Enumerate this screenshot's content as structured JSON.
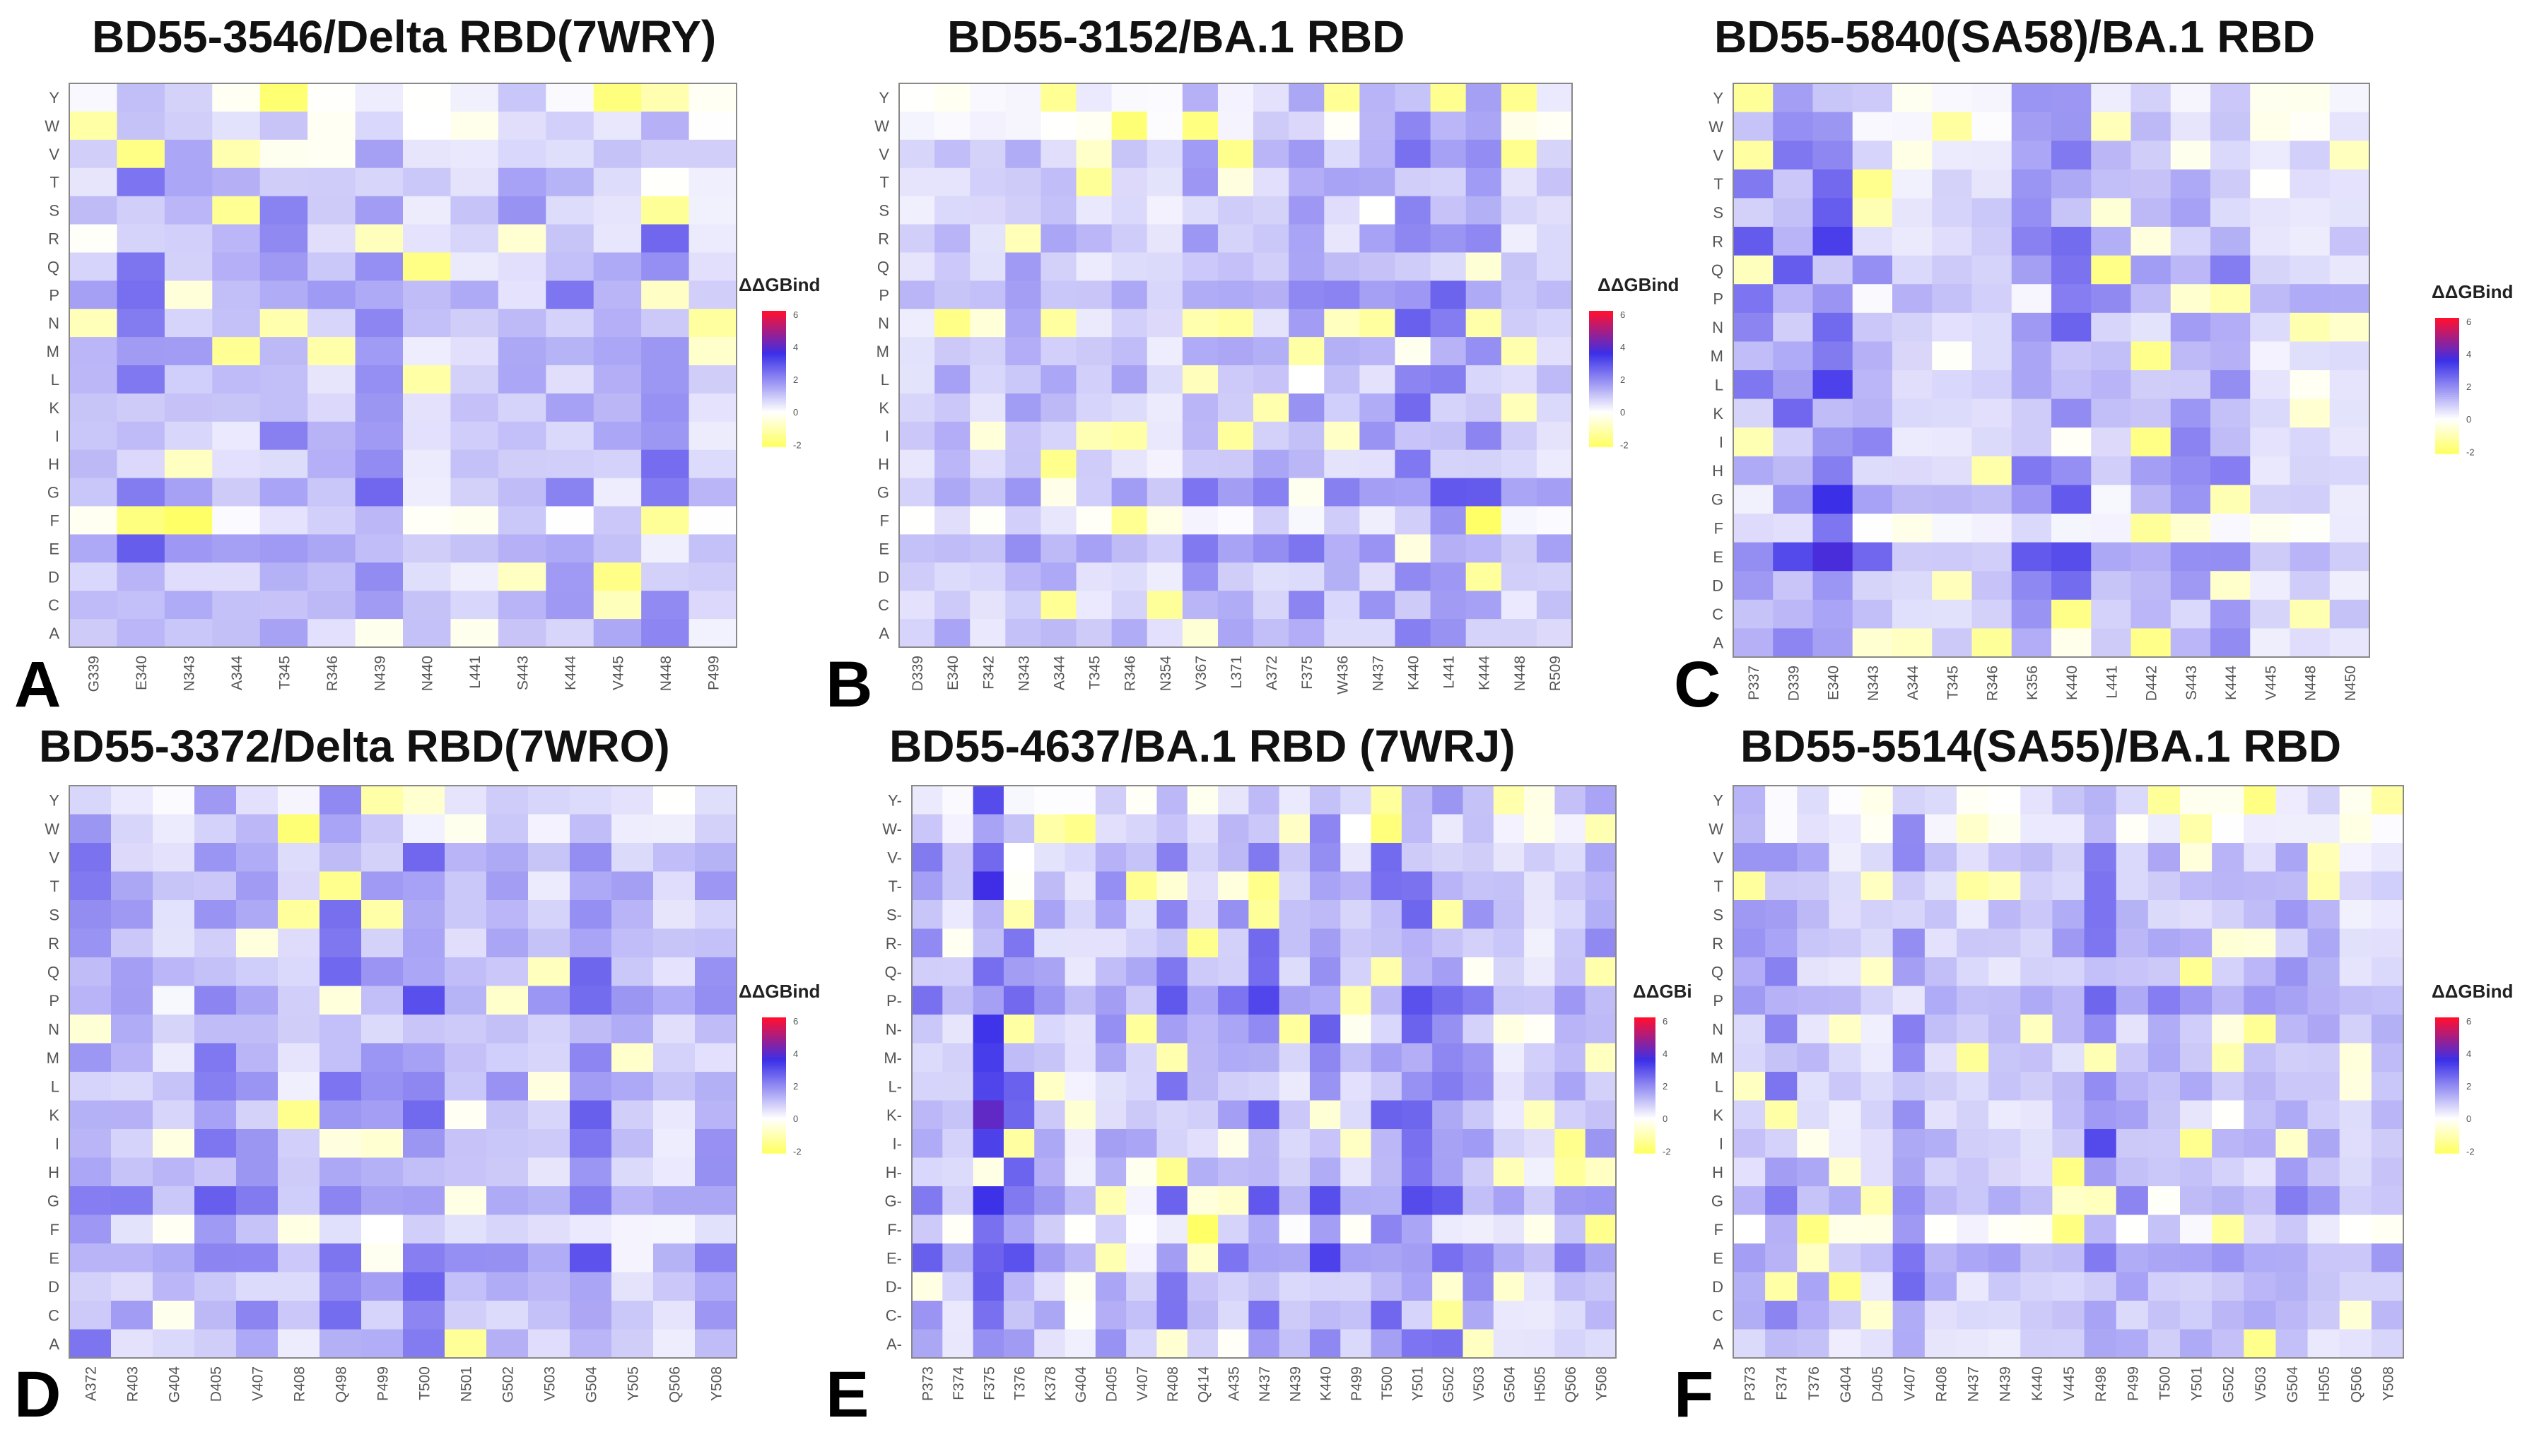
{
  "figure": {
    "colorbar_title": "ΔΔGBind",
    "colorbar_title_short": "ΔΔGBi",
    "colorbar_ticks": [
      "6",
      "4",
      "2",
      "0",
      "-2"
    ],
    "colors": {
      "low": "#ffff66",
      "zero": "#ffffff",
      "mid": "#3b2fe8",
      "high": "#ff1030"
    }
  },
  "chart_data": [
    {
      "type": "heatmap",
      "letter": "A",
      "title": "BD55-3546/Delta RBD(7WRY)",
      "rows": [
        "Y",
        "W",
        "V",
        "T",
        "S",
        "R",
        "Q",
        "P",
        "N",
        "M",
        "L",
        "K",
        "I",
        "H",
        "G",
        "F",
        "E",
        "D",
        "C",
        "A"
      ],
      "columns": [
        "G339",
        "E340",
        "N343",
        "A344",
        "T345",
        "R346",
        "N439",
        "N440",
        "L441",
        "S443",
        "K444",
        "V445",
        "N448",
        "P499"
      ],
      "value_range": [
        -2,
        6
      ],
      "colorbar_title_key": "colorbar_title",
      "colorbar_lens": "v"
    },
    {
      "type": "heatmap",
      "letter": "B",
      "title": "BD55-3152/BA.1 RBD",
      "rows": [
        "Y",
        "W",
        "V",
        "T",
        "S",
        "R",
        "Q",
        "P",
        "N",
        "M",
        "L",
        "K",
        "I",
        "H",
        "G",
        "F",
        "E",
        "D",
        "C",
        "A"
      ],
      "columns": [
        "D339",
        "E340",
        "F342",
        "N343",
        "A344",
        "T345",
        "R346",
        "N354",
        "V367",
        "L371",
        "A372",
        "F375",
        "W436",
        "N437",
        "K440",
        "L441",
        "K444",
        "N448",
        "R509"
      ],
      "value_range": [
        -2,
        6
      ],
      "colorbar_title_key": "colorbar_title",
      "colorbar_lens": "v"
    },
    {
      "type": "heatmap",
      "letter": "C",
      "title": "BD55-5840(SA58)/BA.1 RBD",
      "rows": [
        "Y",
        "W",
        "V",
        "T",
        "S",
        "R",
        "Q",
        "P",
        "N",
        "M",
        "L",
        "K",
        "I",
        "H",
        "G",
        "F",
        "E",
        "D",
        "C",
        "A"
      ],
      "columns": [
        "P337",
        "D339",
        "E340",
        "N343",
        "A344",
        "T345",
        "R346",
        "K356",
        "K440",
        "L441",
        "D442",
        "S443",
        "K444",
        "V445",
        "N448",
        "N450"
      ],
      "value_range": [
        -2,
        6
      ],
      "colorbar_title_key": "colorbar_title",
      "colorbar_lens": "v"
    },
    {
      "type": "heatmap",
      "letter": "D",
      "title": "BD55-3372/Delta RBD(7WRO)",
      "rows": [
        "Y",
        "W",
        "V",
        "T",
        "S",
        "R",
        "Q",
        "P",
        "N",
        "M",
        "L",
        "K",
        "I",
        "H",
        "G",
        "F",
        "E",
        "D",
        "C",
        "A"
      ],
      "columns": [
        "A372",
        "R403",
        "G404",
        "D405",
        "V407",
        "R408",
        "Q498",
        "P499",
        "T500",
        "N501",
        "G502",
        "V503",
        "G504",
        "Y505",
        "Q506",
        "Y508"
      ],
      "value_range": [
        -2,
        6
      ],
      "colorbar_title_key": "colorbar_title",
      "colorbar_lens": "v"
    },
    {
      "type": "heatmap",
      "letter": "E",
      "title": "BD55-4637/BA.1 RBD  (7WRJ)",
      "rows": [
        "Y-",
        "W-",
        "V-",
        "T-",
        "S-",
        "R-",
        "Q-",
        "P-",
        "N-",
        "M-",
        "L-",
        "K-",
        "I-",
        "H-",
        "G-",
        "F-",
        "E-",
        "D-",
        "C-",
        "A-"
      ],
      "columns": [
        "P373",
        "F374",
        "F375",
        "T376",
        "K378",
        "G404",
        "D405",
        "V407",
        "R408",
        "Q414",
        "A435",
        "N437",
        "N439",
        "K440",
        "P499",
        "T500",
        "Y501",
        "G502",
        "V503",
        "G504",
        "H505",
        "Q506",
        "Y508"
      ],
      "value_range": [
        -2,
        6
      ],
      "colorbar_title_key": "colorbar_title_short",
      "colorbar_lens": "v"
    },
    {
      "type": "heatmap",
      "letter": "F",
      "title": "BD55-5514(SA55)/BA.1 RBD",
      "rows": [
        "Y",
        "W",
        "V",
        "T",
        "S",
        "R",
        "Q",
        "P",
        "N",
        "M",
        "L",
        "K",
        "I",
        "H",
        "G",
        "F",
        "E",
        "D",
        "C",
        "A"
      ],
      "columns": [
        "P373",
        "F374",
        "T376",
        "G404",
        "D405",
        "V407",
        "R408",
        "N437",
        "N439",
        "K440",
        "V445",
        "R498",
        "P499",
        "T500",
        "Y501",
        "G502",
        "V503",
        "G504",
        "H505",
        "Q506",
        "Y508"
      ],
      "value_range": [
        -2,
        6
      ],
      "colorbar_title_key": "colorbar_title",
      "colorbar_lens": "v"
    }
  ]
}
